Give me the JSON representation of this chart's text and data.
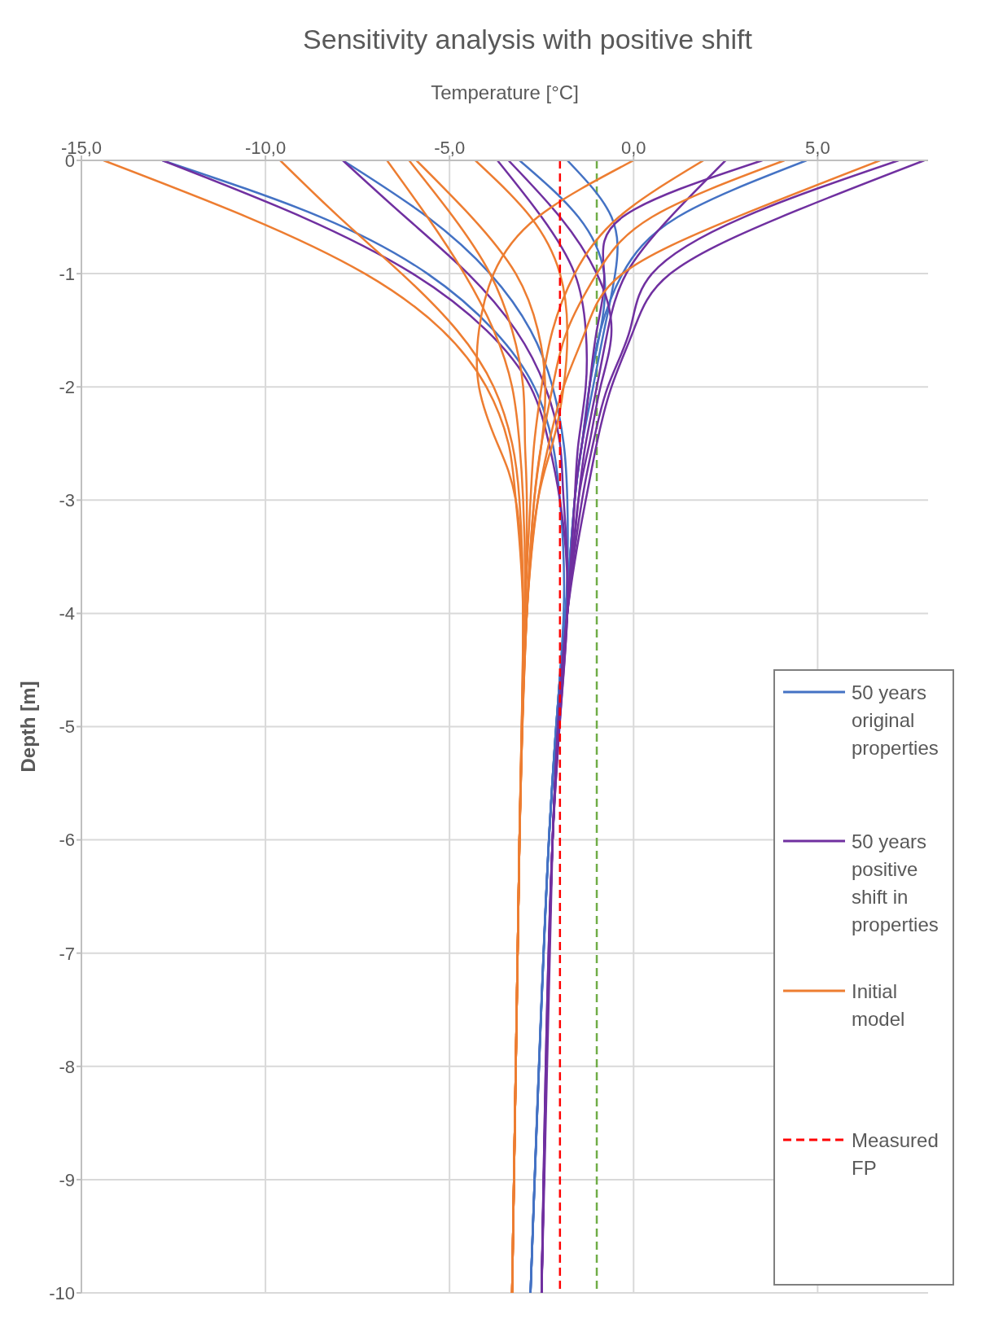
{
  "chart_data": {
    "type": "line",
    "title": "Sensitivity analysis with positive shift",
    "xlabel": "Temperature [°C]",
    "ylabel": "Depth [m]",
    "xlim": [
      -15,
      8
    ],
    "xticks": [
      {
        "value": -15,
        "label": "-15,0"
      },
      {
        "value": -10,
        "label": "-10,0"
      },
      {
        "value": -5,
        "label": "-5,0"
      },
      {
        "value": 0,
        "label": "0,0"
      },
      {
        "value": 5,
        "label": "5,0"
      }
    ],
    "ylim": [
      -10,
      0
    ],
    "yticks": [
      -10,
      -9,
      -8,
      -7,
      -6,
      -5,
      -4,
      -3,
      -2,
      -1,
      0
    ],
    "grid": true,
    "legend": "bottom right",
    "ref_lines": [
      {
        "axis": "x",
        "value": -1,
        "color": "#70ad47",
        "line_style": "dashed"
      }
    ],
    "series": [
      {
        "name": "50 years original properties",
        "color": "#4472c4",
        "x": [
          -12.8,
          -8.5,
          -5.6,
          -3.8,
          -2.7,
          -2.2,
          -2.0,
          -1.9,
          -2.3,
          -2.8
        ],
        "values": [
          0,
          -0.5,
          -1,
          -1.5,
          -2,
          -2.5,
          -3,
          -4,
          -6,
          -10
        ]
      },
      {
        "color": "#4472c4",
        "x": [
          -7.9,
          -5.6,
          -3.9,
          -2.8,
          -2.2,
          -1.9,
          -1.8,
          -1.85,
          -2.3,
          -2.8
        ],
        "values": [
          0,
          -0.5,
          -1,
          -1.5,
          -2,
          -2.5,
          -3,
          -4,
          -6,
          -10
        ]
      },
      {
        "color": "#4472c4",
        "x": [
          -3.1,
          -1.5,
          -0.8,
          -0.9,
          -1.2,
          -1.4,
          -1.6,
          -1.85,
          -2.3,
          -2.8
        ],
        "values": [
          0,
          -0.5,
          -1,
          -1.5,
          -2,
          -2.5,
          -3,
          -4,
          -6,
          -10
        ]
      },
      {
        "color": "#4472c4",
        "x": [
          4.7,
          1.2,
          -0.3,
          -0.9,
          -1.2,
          -1.4,
          -1.6,
          -1.85,
          -2.3,
          -2.8
        ],
        "values": [
          0,
          -0.5,
          -1,
          -1.5,
          -2,
          -2.5,
          -3,
          -4,
          -6,
          -10
        ]
      },
      {
        "color": "#4472c4",
        "x": [
          -1.8,
          -0.6,
          -0.5,
          -0.8,
          -1.1,
          -1.4,
          -1.6,
          -1.85,
          -2.3,
          -2.8
        ],
        "values": [
          0,
          -0.5,
          -1,
          -1.5,
          -2,
          -2.5,
          -3,
          -4,
          -6,
          -10
        ]
      },
      {
        "name": "50 years positive shift in properties",
        "color": "#7030a0",
        "x": [
          -12.8,
          -9.0,
          -6.0,
          -4.0,
          -2.8,
          -2.3,
          -2.0,
          -1.8,
          -2.2,
          -2.5
        ],
        "values": [
          0,
          -0.5,
          -1,
          -1.5,
          -2,
          -2.5,
          -3,
          -4,
          -6,
          -10
        ]
      },
      {
        "color": "#7030a0",
        "x": [
          -7.9,
          -6.2,
          -4.5,
          -3.2,
          -2.4,
          -2.0,
          -1.9,
          -1.8,
          -2.2,
          -2.5
        ],
        "values": [
          0,
          -0.5,
          -1,
          -1.5,
          -2,
          -2.5,
          -3,
          -4,
          -6,
          -10
        ]
      },
      {
        "color": "#7030a0",
        "x": [
          -3.7,
          -2.5,
          -1.6,
          -1.3,
          -1.3,
          -1.5,
          -1.6,
          -1.8,
          -2.2,
          -2.5
        ],
        "values": [
          0,
          -0.5,
          -1,
          -1.5,
          -2,
          -2.5,
          -3,
          -4,
          -6,
          -10
        ]
      },
      {
        "color": "#7030a0",
        "x": [
          -3.4,
          -2.0,
          -1.0,
          -0.6,
          -0.9,
          -1.2,
          -1.5,
          -1.8,
          -2.2,
          -2.5
        ],
        "values": [
          0,
          -0.5,
          -1,
          -1.5,
          -2,
          -2.5,
          -3,
          -4,
          -6,
          -10
        ]
      },
      {
        "color": "#7030a0",
        "x": [
          2.5,
          1.0,
          -0.2,
          -0.7,
          -1.0,
          -1.3,
          -1.5,
          -1.8,
          -2.2,
          -2.5
        ],
        "values": [
          0,
          -0.5,
          -1,
          -1.5,
          -2,
          -2.5,
          -3,
          -4,
          -6,
          -10
        ]
      },
      {
        "color": "#7030a0",
        "x": [
          3.5,
          -0.3,
          -0.8,
          -1.0,
          -1.2,
          -1.4,
          -1.6,
          -1.8,
          -2.2,
          -2.5
        ],
        "values": [
          0,
          -0.5,
          -1,
          -1.5,
          -2,
          -2.5,
          -3,
          -4,
          -6,
          -10
        ]
      },
      {
        "color": "#7030a0",
        "x": [
          7.2,
          3.0,
          0.5,
          -0.1,
          -0.7,
          -1.1,
          -1.4,
          -1.8,
          -2.2,
          -2.5
        ],
        "values": [
          0,
          -0.5,
          -1,
          -1.5,
          -2,
          -2.5,
          -3,
          -4,
          -6,
          -10
        ]
      },
      {
        "color": "#7030a0",
        "x": [
          7.9,
          4.0,
          1.0,
          0.0,
          -0.6,
          -1.0,
          -1.3,
          -1.8,
          -2.2,
          -2.5
        ],
        "values": [
          0,
          -0.5,
          -1,
          -1.5,
          -2,
          -2.5,
          -3,
          -4,
          -6,
          -10
        ]
      },
      {
        "name": "Initial model",
        "color": "#ed7d31",
        "x": [
          -14.4,
          -10.5,
          -7.3,
          -5.2,
          -4.0,
          -3.4,
          -3.2,
          -3.0,
          -3.1,
          -3.3
        ],
        "values": [
          0,
          -0.5,
          -1,
          -1.5,
          -2,
          -2.5,
          -3,
          -4,
          -6,
          -10
        ]
      },
      {
        "color": "#ed7d31",
        "x": [
          -9.6,
          -8.0,
          -6.3,
          -4.8,
          -3.8,
          -3.3,
          -3.1,
          -3.0,
          -3.1,
          -3.3
        ],
        "values": [
          0,
          -0.5,
          -1,
          -1.5,
          -2,
          -2.5,
          -3,
          -4,
          -6,
          -10
        ]
      },
      {
        "color": "#ed7d31",
        "x": [
          -6.7,
          -5.6,
          -4.6,
          -3.8,
          -3.3,
          -3.1,
          -3.0,
          -2.95,
          -3.1,
          -3.3
        ],
        "values": [
          0,
          -0.5,
          -1,
          -1.5,
          -2,
          -2.5,
          -3,
          -4,
          -6,
          -10
        ]
      },
      {
        "color": "#ed7d31",
        "x": [
          -6.1,
          -4.9,
          -3.9,
          -3.3,
          -3.0,
          -2.95,
          -2.9,
          -2.95,
          -3.1,
          -3.3
        ],
        "values": [
          0,
          -0.5,
          -1,
          -1.5,
          -2,
          -2.5,
          -3,
          -4,
          -6,
          -10
        ]
      },
      {
        "color": "#ed7d31",
        "x": [
          -5.9,
          -4.4,
          -3.2,
          -2.6,
          -2.4,
          -2.5,
          -2.7,
          -2.9,
          -3.1,
          -3.3
        ],
        "values": [
          0,
          -0.5,
          -1,
          -1.5,
          -2,
          -2.5,
          -3,
          -4,
          -6,
          -10
        ]
      },
      {
        "color": "#ed7d31",
        "x": [
          -4.3,
          -2.8,
          -2.0,
          -1.8,
          -1.9,
          -2.2,
          -2.6,
          -2.9,
          -3.1,
          -3.3
        ],
        "values": [
          0,
          -0.5,
          -1,
          -1.5,
          -2,
          -2.5,
          -3,
          -4,
          -6,
          -10
        ]
      },
      {
        "color": "#ed7d31",
        "x": [
          0.0,
          -2.6,
          -3.8,
          -4.2,
          -4.2,
          -3.7,
          -3.2,
          -3.0,
          -3.1,
          -3.3
        ],
        "values": [
          0,
          -0.5,
          -1,
          -1.5,
          -2,
          -2.5,
          -3,
          -4,
          -6,
          -10
        ]
      },
      {
        "color": "#ed7d31",
        "x": [
          1.9,
          -0.4,
          -1.6,
          -2.2,
          -2.5,
          -2.7,
          -2.8,
          -2.95,
          -3.1,
          -3.3
        ],
        "values": [
          0,
          -0.5,
          -1,
          -1.5,
          -2,
          -2.5,
          -3,
          -4,
          -6,
          -10
        ]
      },
      {
        "color": "#ed7d31",
        "x": [
          4.1,
          0.5,
          -1.0,
          -1.8,
          -2.2,
          -2.5,
          -2.7,
          -2.9,
          -3.1,
          -3.3
        ],
        "values": [
          0,
          -0.5,
          -1,
          -1.5,
          -2,
          -2.5,
          -3,
          -4,
          -6,
          -10
        ]
      },
      {
        "color": "#ed7d31",
        "x": [
          6.7,
          2.8,
          -0.3,
          -1.3,
          -1.9,
          -2.3,
          -2.6,
          -2.9,
          -3.1,
          -3.3
        ],
        "values": [
          0,
          -0.5,
          -1,
          -1.5,
          -2,
          -2.5,
          -3,
          -4,
          -6,
          -10
        ]
      },
      {
        "name": "Measured FP",
        "color": "#ff0000",
        "line_style": "dashed",
        "x": [
          -2,
          -2
        ],
        "values": [
          0,
          -10
        ]
      }
    ]
  }
}
